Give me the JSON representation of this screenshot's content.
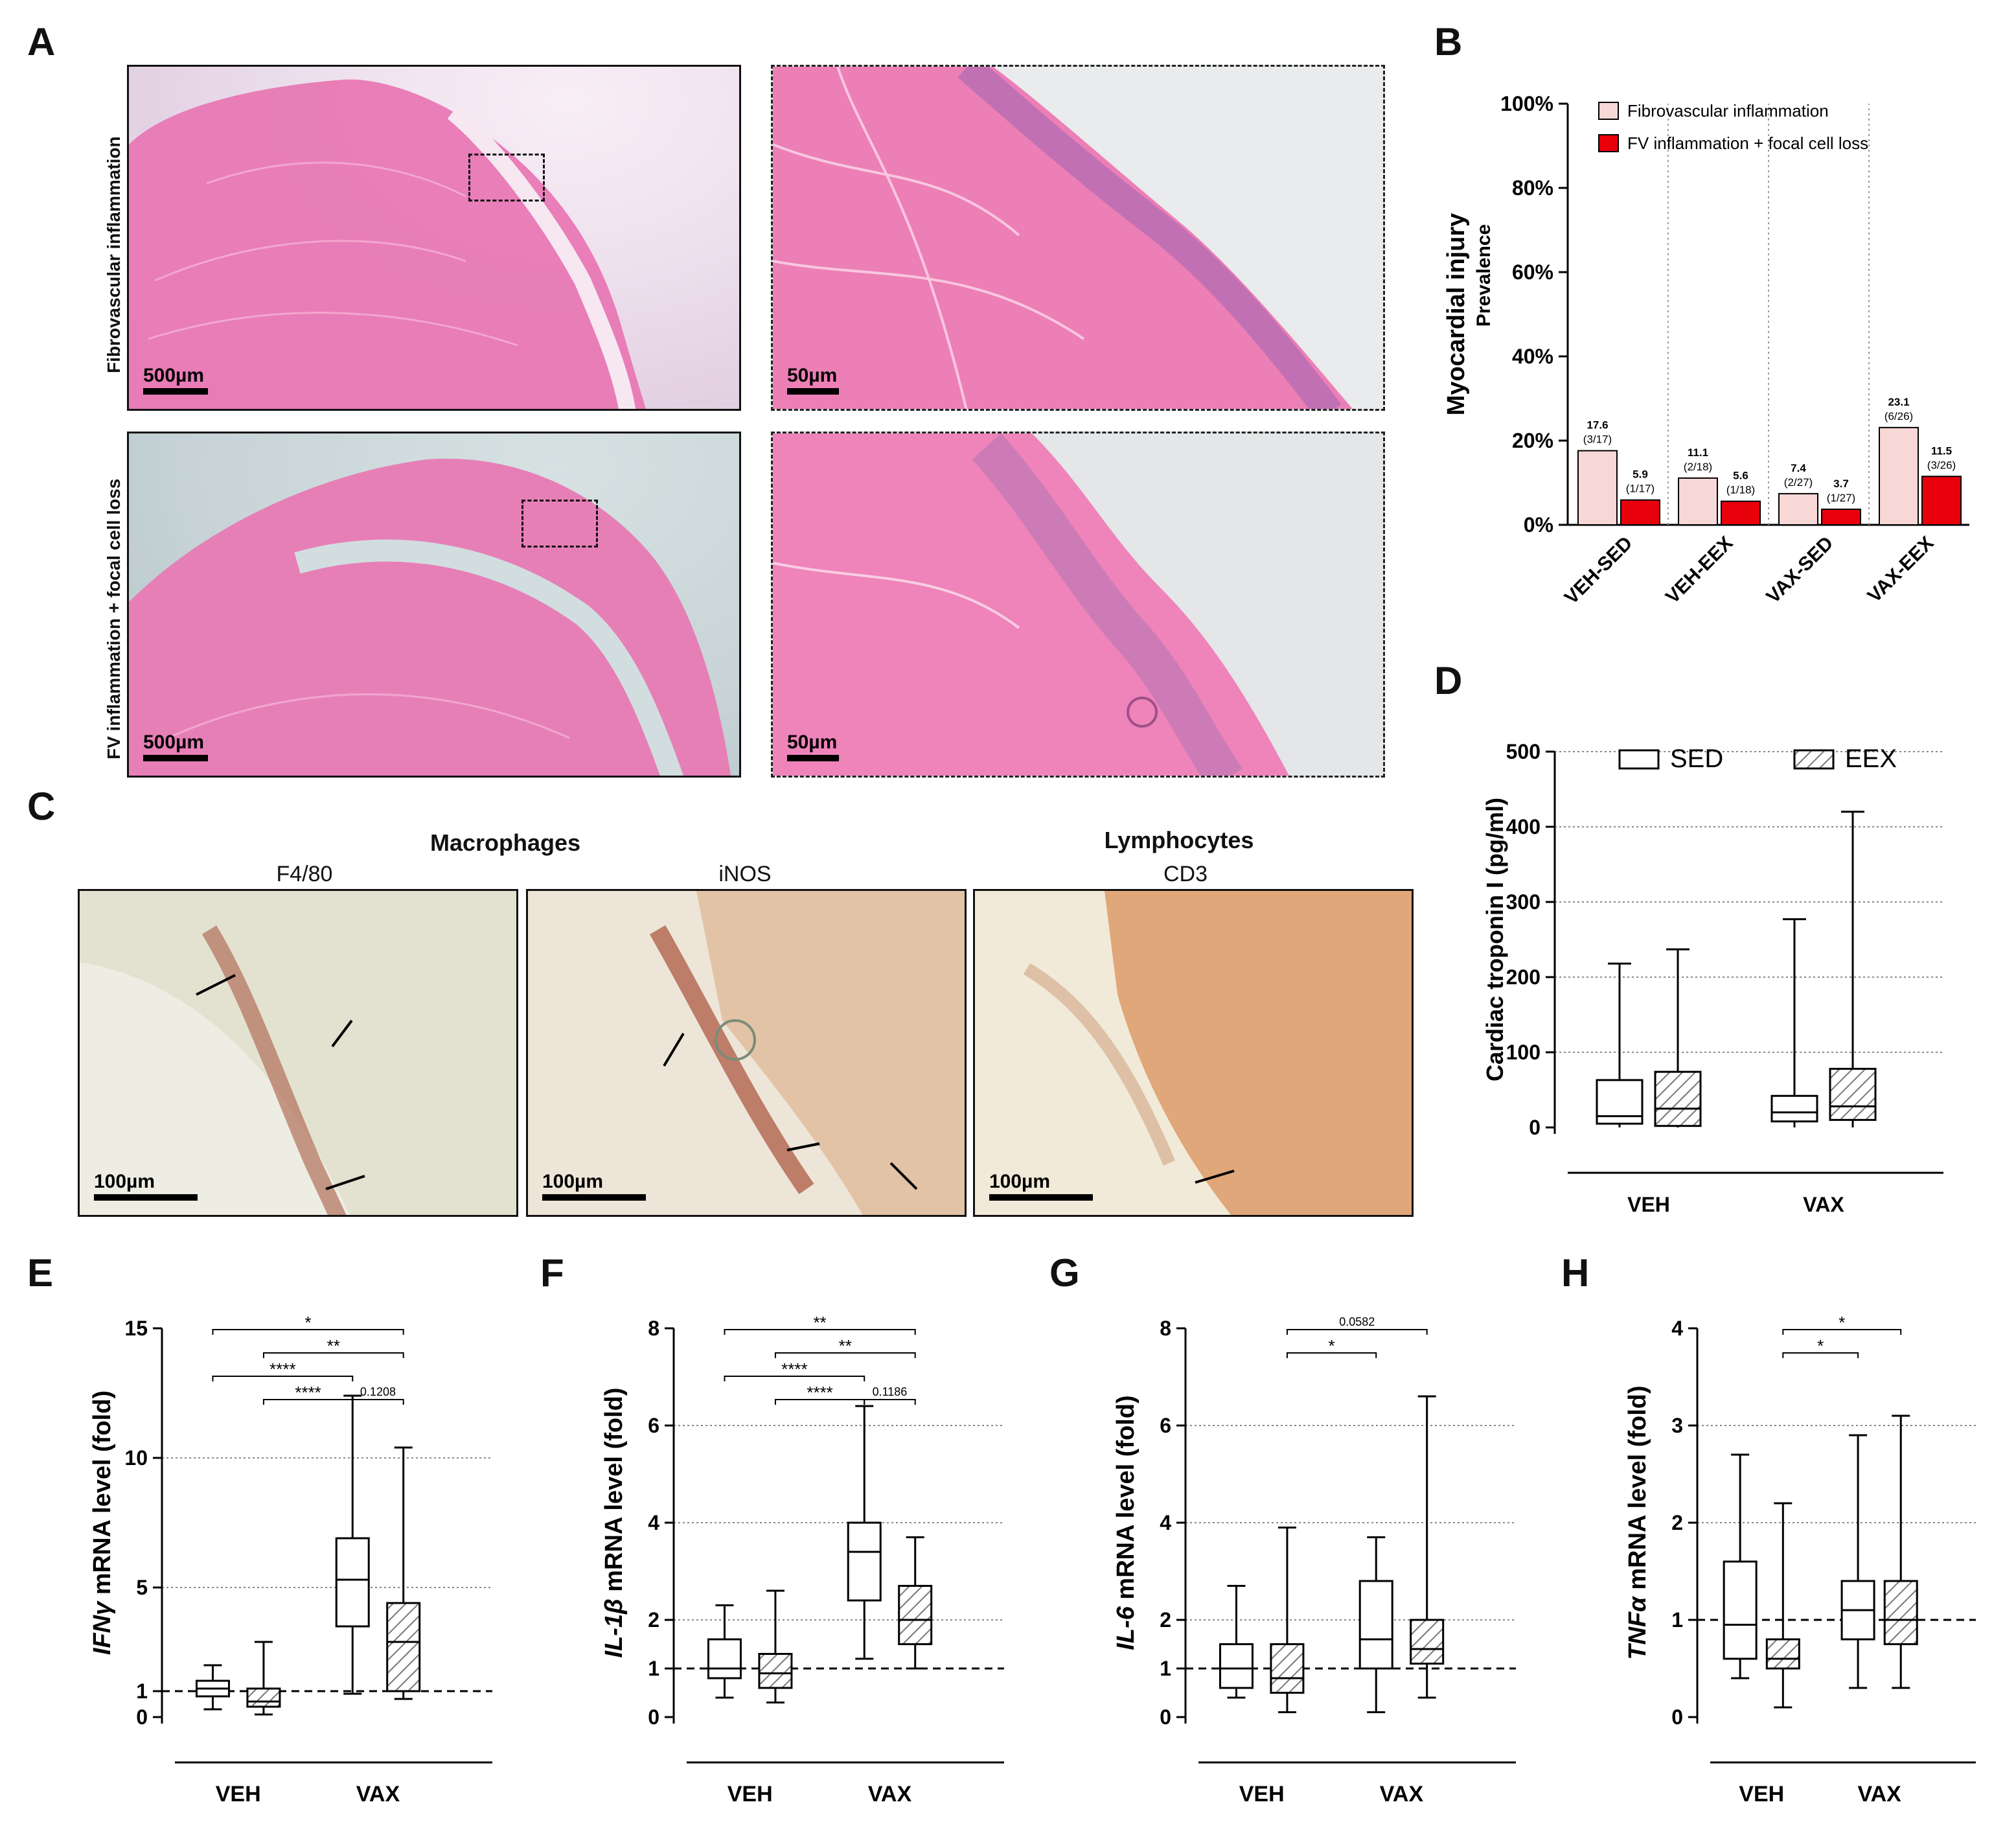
{
  "panels": {
    "A": {
      "letter": "A",
      "row1_label": "Fibrovascular inflammation",
      "row2_label": "FV inflammation + focal cell loss",
      "scale_low": "500µm",
      "scale_high": "50µm"
    },
    "B": {
      "letter": "B"
    },
    "C": {
      "letter": "C",
      "group1_title": "Macrophages",
      "group2_title": "Lymphocytes",
      "stain1": "F4/80",
      "stain2": "iNOS",
      "stain3": "CD3",
      "scale": "100µm"
    },
    "D": {
      "letter": "D"
    },
    "E": {
      "letter": "E"
    },
    "F": {
      "letter": "F"
    },
    "G": {
      "letter": "G"
    },
    "H": {
      "letter": "H"
    }
  },
  "chart_data": [
    {
      "id": "B",
      "type": "bar",
      "ylabel": "Myocardial injury",
      "ylabel2": "Prevalence",
      "yticks": [
        "0%",
        "20%",
        "40%",
        "60%",
        "80%",
        "100%"
      ],
      "ylim": [
        0,
        100
      ],
      "categories": [
        "VEH-SED",
        "VEH-EEX",
        "VAX-SED",
        "VAX-EEX"
      ],
      "legend": [
        "Fibrovascular inflammation",
        "FV inflammation + focal cell loss"
      ],
      "colors": [
        "#f8d7d7",
        "#e8000b"
      ],
      "series": [
        {
          "name": "Fibrovascular inflammation",
          "values": [
            17.6,
            11.1,
            7.4,
            23.1
          ],
          "labels": [
            "17.6",
            "11.1",
            "7.4",
            "23.1"
          ],
          "counts": [
            "(3/17)",
            "(2/18)",
            "(2/27)",
            "(6/26)"
          ]
        },
        {
          "name": "FV inflammation + focal cell loss",
          "values": [
            5.9,
            5.6,
            3.7,
            11.5
          ],
          "labels": [
            "5.9",
            "5.6",
            "3.7",
            "11.5"
          ],
          "counts": [
            "(1/17)",
            "(1/18)",
            "(1/27)",
            "(3/26)"
          ]
        }
      ]
    },
    {
      "id": "D",
      "type": "box",
      "ylabel": "Cardiac troponin I (pg/ml)",
      "ylim": [
        0,
        500
      ],
      "yticks": [
        "0",
        "100",
        "200",
        "300",
        "400",
        "500"
      ],
      "groups": [
        "VEH",
        "VAX"
      ],
      "legend": [
        "SED",
        "EEX"
      ],
      "boxes": [
        {
          "group": "VEH",
          "cond": "SED",
          "min": 0,
          "q1": 5,
          "median": 15,
          "q3": 63,
          "max": 218
        },
        {
          "group": "VEH",
          "cond": "EEX",
          "min": 0,
          "q1": 2,
          "median": 25,
          "q3": 74,
          "max": 237
        },
        {
          "group": "VAX",
          "cond": "SED",
          "min": 0,
          "q1": 8,
          "median": 20,
          "q3": 42,
          "max": 277
        },
        {
          "group": "VAX",
          "cond": "EEX",
          "min": 0,
          "q1": 10,
          "median": 28,
          "q3": 78,
          "max": 420
        }
      ]
    },
    {
      "id": "E",
      "type": "box",
      "ylabel_italic": "IFNγ",
      "ylabel_rest": " mRNA level (fold)",
      "ylim": [
        0,
        15
      ],
      "yticks": [
        "0",
        "1",
        "5",
        "10",
        "15"
      ],
      "ytick_values": [
        0,
        1,
        5,
        10,
        15
      ],
      "gridlines": [
        5,
        10
      ],
      "groups": [
        "VEH",
        "VAX"
      ],
      "boxes": [
        {
          "cond": "SED",
          "min": 0.3,
          "q1": 0.8,
          "median": 1.1,
          "q3": 1.4,
          "max": 2.0
        },
        {
          "cond": "EEX",
          "min": 0.1,
          "q1": 0.4,
          "median": 0.6,
          "q3": 1.1,
          "max": 2.9
        },
        {
          "cond": "SED",
          "min": 0.9,
          "q1": 3.5,
          "median": 5.3,
          "q3": 6.9,
          "max": 12.4
        },
        {
          "cond": "EEX",
          "min": 0.7,
          "q1": 1.0,
          "median": 2.9,
          "q3": 4.4,
          "max": 10.4
        }
      ],
      "brackets": [
        {
          "from": 0,
          "to": 3,
          "label": "*",
          "level": 0
        },
        {
          "from": 1,
          "to": 3,
          "label": "**",
          "level": 1
        },
        {
          "from": 0,
          "to": 2,
          "label": "****",
          "level": 2
        },
        {
          "from": 1,
          "to": 2,
          "label": "****",
          "level": 3
        },
        {
          "from": 2,
          "to": 3,
          "label": "0.1208",
          "level": 3
        }
      ]
    },
    {
      "id": "F",
      "type": "box",
      "ylabel_italic": "IL-1β",
      "ylabel_rest": " mRNA level (fold)",
      "ylim": [
        0,
        8
      ],
      "yticks": [
        "0",
        "1",
        "2",
        "4",
        "6",
        "8"
      ],
      "ytick_values": [
        0,
        1,
        2,
        4,
        6,
        8
      ],
      "gridlines": [
        2,
        4,
        6
      ],
      "groups": [
        "VEH",
        "VAX"
      ],
      "boxes": [
        {
          "cond": "SED",
          "min": 0.4,
          "q1": 0.8,
          "median": 1.0,
          "q3": 1.6,
          "max": 2.3
        },
        {
          "cond": "EEX",
          "min": 0.3,
          "q1": 0.6,
          "median": 0.9,
          "q3": 1.3,
          "max": 2.6
        },
        {
          "cond": "SED",
          "min": 1.2,
          "q1": 2.4,
          "median": 3.4,
          "q3": 4.0,
          "max": 6.4
        },
        {
          "cond": "EEX",
          "min": 1.0,
          "q1": 1.5,
          "median": 2.0,
          "q3": 2.7,
          "max": 3.7
        }
      ],
      "brackets": [
        {
          "from": 0,
          "to": 3,
          "label": "**",
          "level": 0
        },
        {
          "from": 1,
          "to": 3,
          "label": "**",
          "level": 1
        },
        {
          "from": 0,
          "to": 2,
          "label": "****",
          "level": 2
        },
        {
          "from": 1,
          "to": 2,
          "label": "****",
          "level": 3
        },
        {
          "from": 2,
          "to": 3,
          "label": "0.1186",
          "level": 3
        }
      ]
    },
    {
      "id": "G",
      "type": "box",
      "ylabel_italic": "IL-6",
      "ylabel_rest": " mRNA level (fold)",
      "ylim": [
        0,
        8
      ],
      "yticks": [
        "0",
        "1",
        "2",
        "4",
        "6",
        "8"
      ],
      "ytick_values": [
        0,
        1,
        2,
        4,
        6,
        8
      ],
      "gridlines": [
        2,
        4,
        6
      ],
      "groups": [
        "VEH",
        "VAX"
      ],
      "boxes": [
        {
          "cond": "SED",
          "min": 0.4,
          "q1": 0.6,
          "median": 1.0,
          "q3": 1.5,
          "max": 2.7
        },
        {
          "cond": "EEX",
          "min": 0.1,
          "q1": 0.5,
          "median": 0.8,
          "q3": 1.5,
          "max": 3.9
        },
        {
          "cond": "SED",
          "min": 0.1,
          "q1": 1.0,
          "median": 1.6,
          "q3": 2.8,
          "max": 3.7
        },
        {
          "cond": "EEX",
          "min": 0.4,
          "q1": 1.1,
          "median": 1.4,
          "q3": 2.0,
          "max": 6.6
        }
      ],
      "brackets": [
        {
          "from": 1,
          "to": 3,
          "label": "0.0582",
          "level": 0
        },
        {
          "from": 1,
          "to": 2,
          "label": "*",
          "level": 1
        }
      ]
    },
    {
      "id": "H",
      "type": "box",
      "ylabel_italic": "TNFα",
      "ylabel_rest": " mRNA level (fold)",
      "ylim": [
        0,
        4
      ],
      "yticks": [
        "0",
        "1",
        "2",
        "3",
        "4"
      ],
      "ytick_values": [
        0,
        1,
        2,
        3,
        4
      ],
      "gridlines": [
        2,
        3
      ],
      "groups": [
        "VEH",
        "VAX"
      ],
      "boxes": [
        {
          "cond": "SED",
          "min": 0.4,
          "q1": 0.6,
          "median": 0.95,
          "q3": 1.6,
          "max": 2.7
        },
        {
          "cond": "EEX",
          "min": 0.1,
          "q1": 0.5,
          "median": 0.6,
          "q3": 0.8,
          "max": 2.2
        },
        {
          "cond": "SED",
          "min": 0.3,
          "q1": 0.8,
          "median": 1.1,
          "q3": 1.4,
          "max": 2.9
        },
        {
          "cond": "EEX",
          "min": 0.3,
          "q1": 0.75,
          "median": 1.0,
          "q3": 1.4,
          "max": 3.1
        }
      ],
      "brackets": [
        {
          "from": 1,
          "to": 3,
          "label": "*",
          "level": 0
        },
        {
          "from": 1,
          "to": 2,
          "label": "*",
          "level": 1
        }
      ]
    }
  ]
}
